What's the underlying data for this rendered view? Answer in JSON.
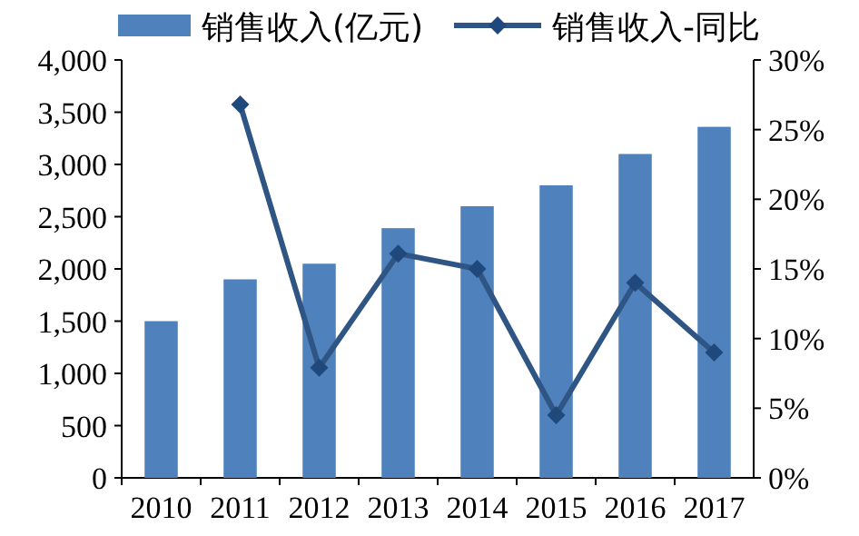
{
  "chart_data": {
    "type": "bar",
    "categories": [
      "2010",
      "2011",
      "2012",
      "2013",
      "2014",
      "2015",
      "2016",
      "2017"
    ],
    "series": [
      {
        "name": "销售收入(亿元)",
        "color": "#4f81bd",
        "values": [
          1500,
          1900,
          2050,
          2390,
          2600,
          2800,
          3100,
          3360
        ]
      },
      {
        "name": "销售收入-同比",
        "type": "line",
        "axis": "y2",
        "color": "#2e5583",
        "marker": "diamond",
        "values": [
          null,
          26.8,
          7.9,
          16.1,
          15.0,
          4.5,
          14.0,
          9.0
        ]
      }
    ],
    "ylim": [
      0,
      4000
    ],
    "yticks": [
      {
        "value": 0,
        "label": "0"
      },
      {
        "value": 500,
        "label": "500"
      },
      {
        "value": 1000,
        "label": "1,000"
      },
      {
        "value": 1500,
        "label": "1,500"
      },
      {
        "value": 2000,
        "label": "2,000"
      },
      {
        "value": 2500,
        "label": "2,500"
      },
      {
        "value": 3000,
        "label": "3,000"
      },
      {
        "value": 3500,
        "label": "3,500"
      },
      {
        "value": 4000,
        "label": "4,000"
      }
    ],
    "y2lim": [
      0,
      30
    ],
    "y2ticks": [
      {
        "value": 0,
        "label": "0%"
      },
      {
        "value": 5,
        "label": "5%"
      },
      {
        "value": 10,
        "label": "10%"
      },
      {
        "value": 15,
        "label": "15%"
      },
      {
        "value": 20,
        "label": "20%"
      },
      {
        "value": 25,
        "label": "25%"
      },
      {
        "value": 30,
        "label": "30%"
      }
    ],
    "legend": "top",
    "grid": false
  }
}
